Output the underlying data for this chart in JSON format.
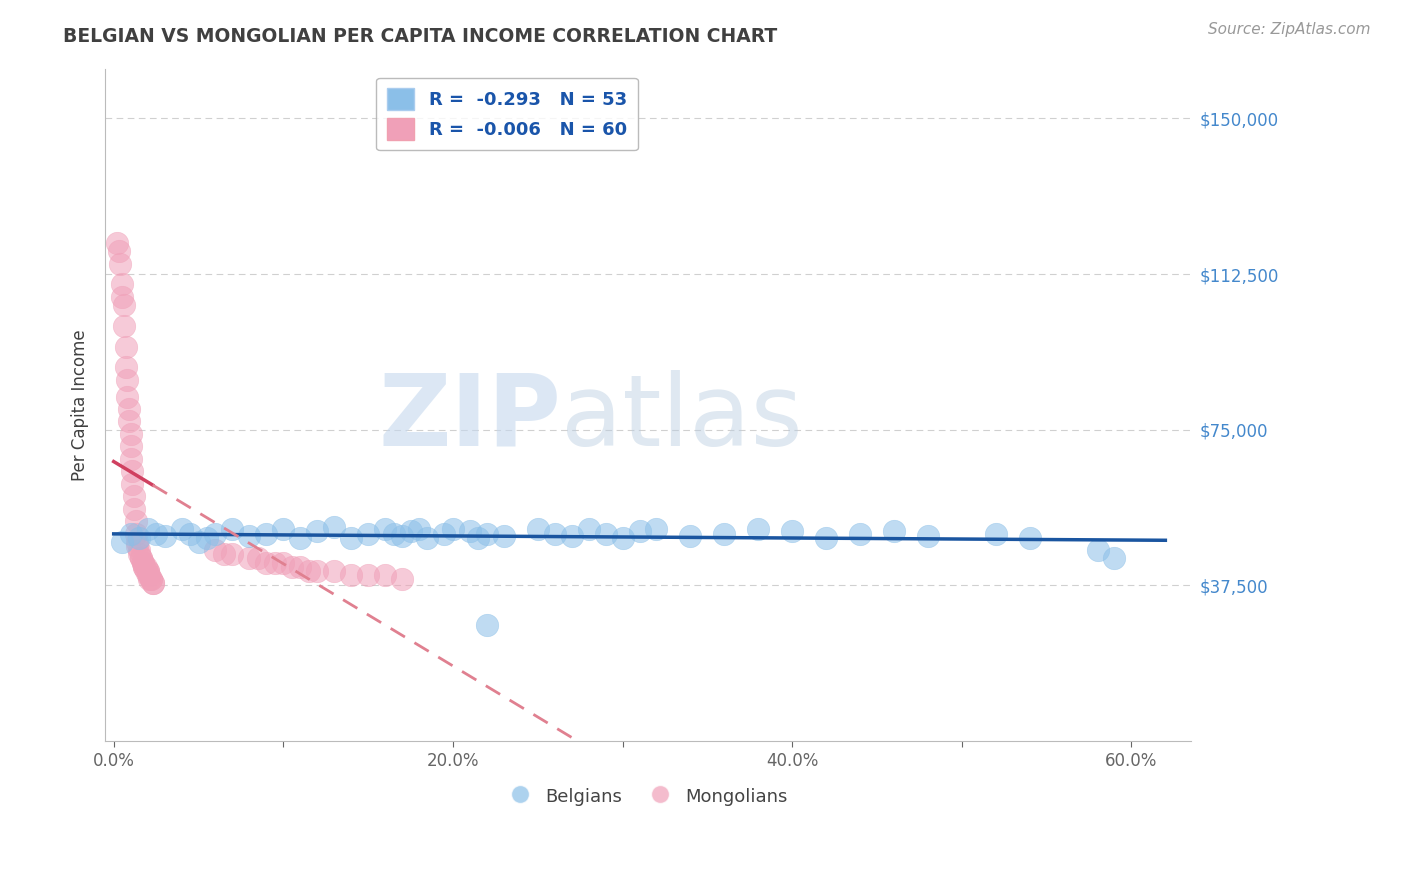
{
  "title": "BELGIAN VS MONGOLIAN PER CAPITA INCOME CORRELATION CHART",
  "source": "Source: ZipAtlas.com",
  "ylabel": "Per Capita Income",
  "watermark_zip": "ZIP",
  "watermark_atlas": "atlas",
  "ylim": [
    0,
    162000
  ],
  "xlim": [
    -0.005,
    0.635
  ],
  "blue_color": "#8bbfe8",
  "pink_color": "#f0a0b8",
  "blue_line_color": "#1a55a0",
  "pink_line_color": "#d04060",
  "pink_line_dash_color": "#e08090",
  "grid_color": "#d0d0d0",
  "yaxis_label_color": "#4488cc",
  "title_color": "#404040",
  "source_color": "#999999",
  "background_color": "#ffffff",
  "legend_blue_label": "R =  -0.293   N = 53",
  "legend_pink_label": "R =  -0.006   N = 60",
  "blue_scatter_x": [
    0.005,
    0.01,
    0.015,
    0.02,
    0.025,
    0.03,
    0.04,
    0.045,
    0.05,
    0.055,
    0.06,
    0.07,
    0.08,
    0.09,
    0.1,
    0.11,
    0.12,
    0.13,
    0.14,
    0.15,
    0.16,
    0.165,
    0.17,
    0.175,
    0.18,
    0.185,
    0.195,
    0.2,
    0.21,
    0.215,
    0.22,
    0.23,
    0.25,
    0.26,
    0.27,
    0.28,
    0.29,
    0.3,
    0.31,
    0.32,
    0.34,
    0.36,
    0.38,
    0.4,
    0.42,
    0.44,
    0.46,
    0.48,
    0.52,
    0.54,
    0.58,
    0.59,
    0.22
  ],
  "blue_scatter_y": [
    48000,
    50000,
    49000,
    51000,
    50000,
    49500,
    51000,
    50000,
    48000,
    49000,
    50000,
    51000,
    49500,
    50000,
    51000,
    49000,
    50500,
    51500,
    49000,
    50000,
    51000,
    50000,
    49500,
    50500,
    51000,
    49000,
    50000,
    51000,
    50500,
    49000,
    50000,
    49500,
    51000,
    50000,
    49500,
    51000,
    50000,
    49000,
    50500,
    51000,
    49500,
    50000,
    51000,
    50500,
    49000,
    50000,
    50500,
    49500,
    50000,
    49000,
    46000,
    44000,
    28000
  ],
  "pink_scatter_x": [
    0.002,
    0.003,
    0.004,
    0.005,
    0.005,
    0.006,
    0.006,
    0.007,
    0.007,
    0.008,
    0.008,
    0.009,
    0.009,
    0.01,
    0.01,
    0.01,
    0.011,
    0.011,
    0.012,
    0.012,
    0.013,
    0.013,
    0.014,
    0.014,
    0.015,
    0.015,
    0.016,
    0.016,
    0.017,
    0.017,
    0.018,
    0.018,
    0.019,
    0.019,
    0.02,
    0.02,
    0.02,
    0.021,
    0.021,
    0.022,
    0.022,
    0.023,
    0.023,
    0.06,
    0.065,
    0.07,
    0.08,
    0.085,
    0.09,
    0.095,
    0.1,
    0.105,
    0.11,
    0.115,
    0.12,
    0.13,
    0.14,
    0.15,
    0.16,
    0.17
  ],
  "pink_scatter_y": [
    120000,
    118000,
    115000,
    110000,
    107000,
    105000,
    100000,
    95000,
    90000,
    87000,
    83000,
    80000,
    77000,
    74000,
    71000,
    68000,
    65000,
    62000,
    59000,
    56000,
    53000,
    50000,
    48000,
    47000,
    46000,
    45000,
    44000,
    44000,
    43000,
    43000,
    42000,
    42000,
    42000,
    41000,
    41000,
    41000,
    40000,
    40000,
    39000,
    39000,
    39000,
    38000,
    38000,
    46000,
    45000,
    45000,
    44000,
    44000,
    43000,
    43000,
    43000,
    42000,
    42000,
    41000,
    41000,
    41000,
    40000,
    40000,
    40000,
    39000
  ]
}
